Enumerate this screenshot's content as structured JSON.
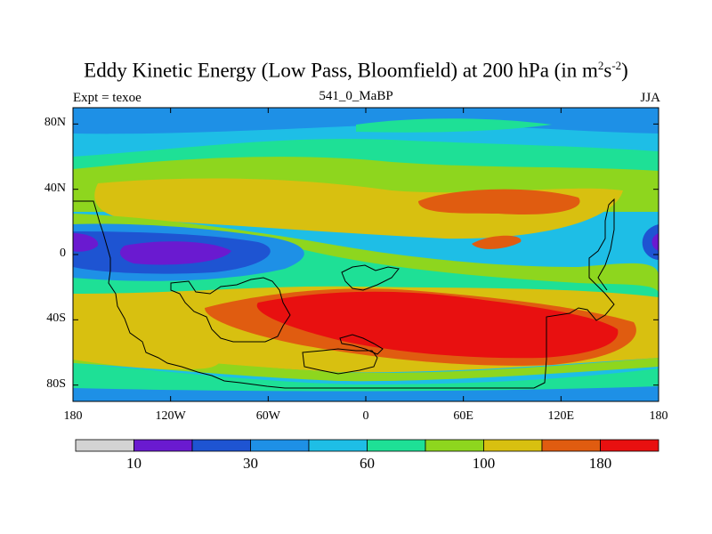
{
  "title": {
    "main": "Eddy Kinetic Energy (Low Pass, Bloomfield) at 200 hPa (in m",
    "sup1": "2",
    "mid": "s",
    "sup2": "-2",
    "end": ")"
  },
  "subtitle": "541_0_MaBP",
  "left_label": "Expt = texoe",
  "right_label": "JJA",
  "map": {
    "lat_range": [
      -90,
      90
    ],
    "lon_range": [
      -180,
      180
    ],
    "lat_labels": [
      {
        "value": 80,
        "text": "80N"
      },
      {
        "value": 40,
        "text": "40N"
      },
      {
        "value": 0,
        "text": "0"
      },
      {
        "value": -40,
        "text": "40S"
      },
      {
        "value": -80,
        "text": "80S"
      }
    ],
    "lon_labels": [
      {
        "value": -180,
        "text": "180"
      },
      {
        "value": -120,
        "text": "120W"
      },
      {
        "value": -60,
        "text": "60W"
      },
      {
        "value": 0,
        "text": "0"
      },
      {
        "value": 60,
        "text": "60E"
      },
      {
        "value": 120,
        "text": "120E"
      },
      {
        "value": 180,
        "text": "180"
      }
    ]
  },
  "colorbar": {
    "colors": [
      "#d3d3d3",
      "#6a1ad0",
      "#1e54d2",
      "#1e90e6",
      "#1ebee6",
      "#1ee096",
      "#8ed61e",
      "#d8c010",
      "#e05c10",
      "#e81010"
    ],
    "labels": [
      "10",
      "30",
      "60",
      "100",
      "180"
    ]
  },
  "colors": {
    "base": "#1ebee6",
    "bands": [
      "#1e90e6",
      "#1ee096",
      "#8ed61e",
      "#d8c010",
      "#e05c10",
      "#e81010",
      "#1e54d2",
      "#6a1ad0"
    ]
  }
}
